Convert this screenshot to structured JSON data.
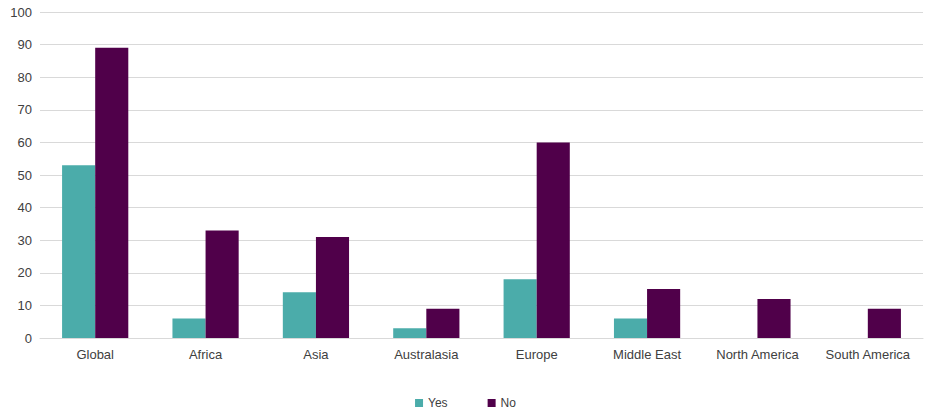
{
  "chart_data": {
    "type": "bar",
    "categories": [
      "Global",
      "Africa",
      "Asia",
      "Australasia",
      "Europe",
      "Middle East",
      "North America",
      "South America"
    ],
    "series": [
      {
        "name": "Yes",
        "color": "#4bacaa",
        "values": [
          53,
          6,
          14,
          3,
          18,
          6,
          0,
          0
        ]
      },
      {
        "name": "No",
        "color": "#50004a",
        "values": [
          89,
          33,
          31,
          9,
          60,
          15,
          12,
          9
        ]
      }
    ],
    "ylim": [
      0,
      100
    ],
    "yticks": [
      0,
      10,
      20,
      30,
      40,
      50,
      60,
      70,
      80,
      90,
      100
    ],
    "grid": true,
    "legend": "bottom"
  }
}
